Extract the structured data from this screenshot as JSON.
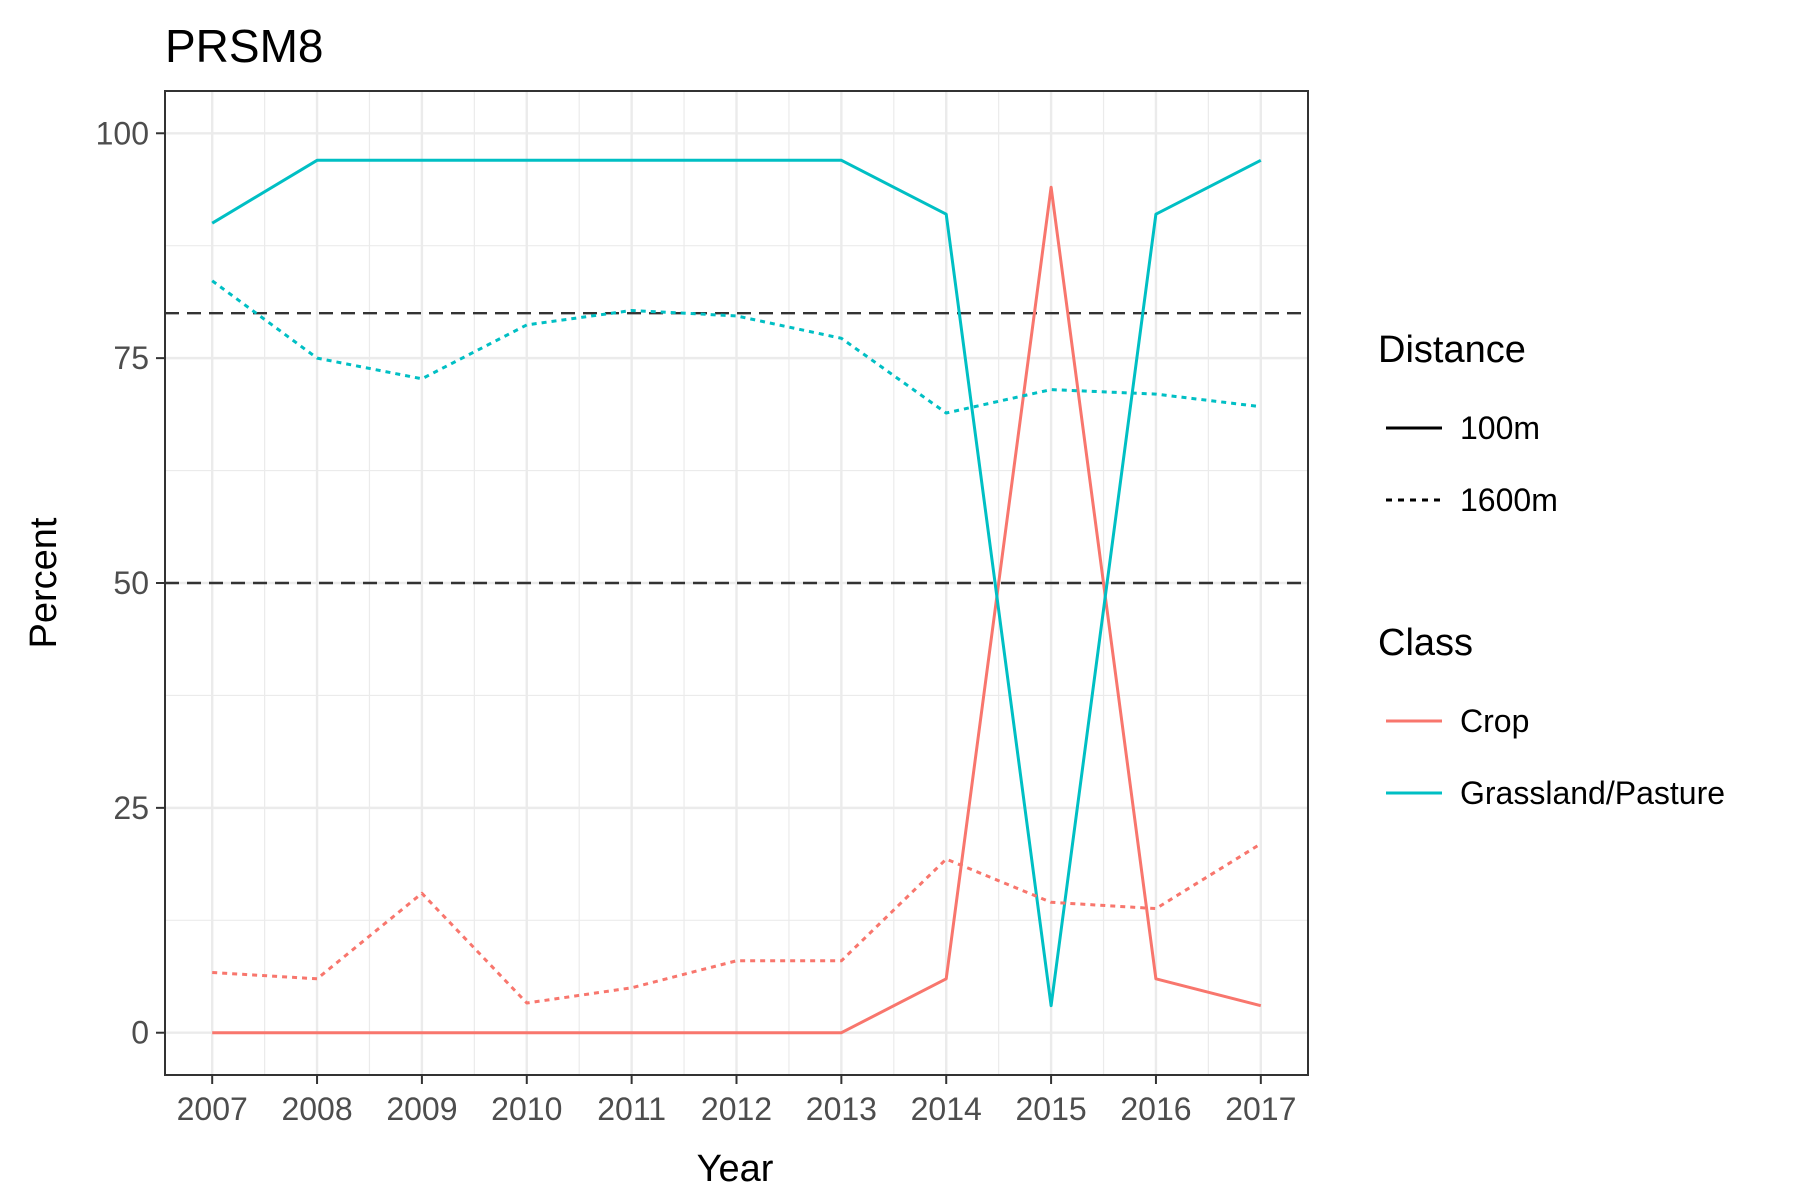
{
  "chart_data": {
    "type": "line",
    "title": "PRSM8",
    "xlabel": "Year",
    "ylabel": "Percent",
    "x": [
      "2007",
      "2008",
      "2009",
      "2010",
      "2011",
      "2012",
      "2013",
      "2014",
      "2015",
      "2016",
      "2017"
    ],
    "xlim": [
      2006.55,
      2017.45
    ],
    "ylim": [
      -4.7,
      104.7
    ],
    "yticks": [
      0,
      25,
      50,
      75,
      100
    ],
    "ytick_labels": [
      "0",
      "25",
      "50",
      "75",
      "100"
    ],
    "grid": true,
    "reference_lines": [
      {
        "y": 80,
        "style": "dashed",
        "color": "#333333"
      },
      {
        "y": 50,
        "style": "dashed",
        "color": "#333333"
      }
    ],
    "series": [
      {
        "class": "Crop",
        "distance": "100m",
        "color": "#F8766D",
        "linestyle": "solid",
        "values": [
          0,
          0,
          0,
          0,
          0,
          0,
          0,
          6,
          94,
          6,
          3
        ]
      },
      {
        "class": "Grassland/Pasture",
        "distance": "100m",
        "color": "#00BFC4",
        "linestyle": "solid",
        "values": [
          90,
          97,
          97,
          97,
          97,
          97,
          97,
          91,
          3,
          91,
          97
        ]
      },
      {
        "class": "Crop",
        "distance": "1600m",
        "color": "#F8766D",
        "linestyle": "dotted",
        "values": [
          6.7,
          6,
          15.5,
          3.3,
          5,
          8,
          8,
          19.3,
          14.5,
          13.8,
          21
        ]
      },
      {
        "class": "Grassland/Pasture",
        "distance": "1600m",
        "color": "#00BFC4",
        "linestyle": "dotted",
        "values": [
          83.6,
          75,
          72.7,
          78.7,
          80.3,
          79.7,
          77.2,
          68.9,
          71.5,
          71,
          69.6
        ]
      }
    ],
    "legend": {
      "position": "right",
      "groups": [
        {
          "title": "Distance",
          "items": [
            {
              "label": "100m",
              "color": "#000000",
              "linestyle": "solid"
            },
            {
              "label": "1600m",
              "color": "#000000",
              "linestyle": "dotted"
            }
          ]
        },
        {
          "title": "Class",
          "items": [
            {
              "label": "Crop",
              "color": "#F8766D",
              "linestyle": "solid"
            },
            {
              "label": "Grassland/Pasture",
              "color": "#00BFC4",
              "linestyle": "solid"
            }
          ]
        }
      ]
    }
  }
}
